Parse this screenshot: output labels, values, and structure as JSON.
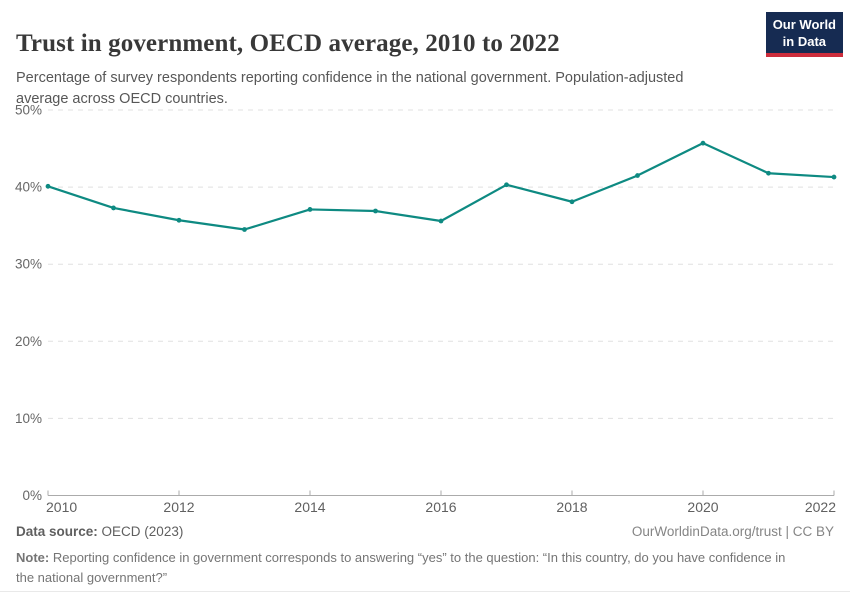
{
  "header": {
    "title": "Trust in government, OECD average, 2010 to 2022",
    "subtitle": "Percentage of survey respondents reporting confidence in the national government. Population-adjusted average across OECD countries.",
    "logo": {
      "line1": "Our World",
      "line2": "in Data",
      "bg_color": "#162b52",
      "accent_color": "#cd2d3c"
    }
  },
  "chart_data": {
    "type": "line",
    "title": "Trust in government, OECD average, 2010 to 2022",
    "xlabel": "",
    "ylabel": "",
    "x": [
      2010,
      2011,
      2012,
      2013,
      2014,
      2015,
      2016,
      2017,
      2018,
      2019,
      2020,
      2021,
      2022
    ],
    "values": [
      40.1,
      37.3,
      35.7,
      34.5,
      37.1,
      36.9,
      35.6,
      40.3,
      38.1,
      41.5,
      45.7,
      41.8,
      41.3
    ],
    "series_name": "OECD average",
    "unit": "%",
    "xlim": [
      2010,
      2022
    ],
    "ylim": [
      0,
      50
    ],
    "yticks": [
      0,
      10,
      20,
      30,
      40,
      50
    ],
    "ytick_labels": [
      "0%",
      "10%",
      "20%",
      "30%",
      "40%",
      "50%"
    ],
    "xticks": [
      2010,
      2012,
      2014,
      2016,
      2018,
      2020,
      2022
    ],
    "grid": "horizontal-dashed",
    "legend": "none",
    "line_color": "#0e8a82",
    "grid_color": "#e0e0e0",
    "axis_color": "#ababab",
    "tick_text_color": "#666666"
  },
  "footer": {
    "datasource_label": "Data source:",
    "datasource_value": "OECD (2023)",
    "attribution": "OurWorldinData.org/trust | CC BY",
    "note_label": "Note:",
    "note_text": "Reporting confidence in government corresponds to answering “yes” to the question: “In this country, do you have confidence in the national government?”"
  }
}
